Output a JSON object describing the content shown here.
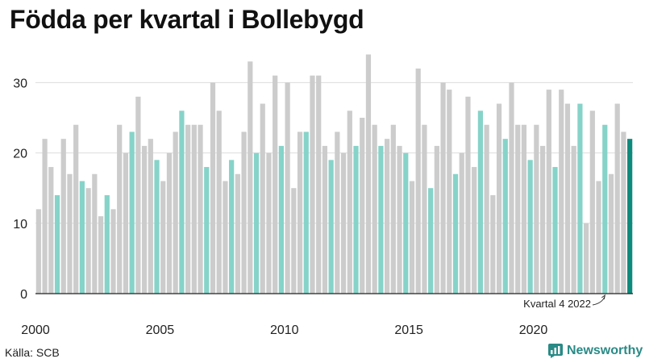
{
  "title": "Födda per kvartal i Bollebygd",
  "source": "Källa: SCB",
  "brand": "Newsworthy",
  "colors": {
    "default": "#cccccc",
    "q4": "#86d3c9",
    "latest": "#0e8a7c",
    "brand": "#2a8a86"
  },
  "chart_data": {
    "type": "bar",
    "title": "Födda per kvartal i Bollebygd",
    "xlabel": "",
    "ylabel": "",
    "ylim": [
      0,
      35
    ],
    "yticks": [
      0,
      10,
      20,
      30
    ],
    "xtick_labels": [
      "2000",
      "2005",
      "2010",
      "2015",
      "2020"
    ],
    "annotation": "Kvartal 4 2022",
    "start_year": 2000,
    "values": [
      12,
      22,
      18,
      14,
      22,
      17,
      24,
      16,
      15,
      17,
      11,
      14,
      12,
      24,
      20,
      23,
      28,
      21,
      22,
      19,
      16,
      20,
      23,
      26,
      24,
      24,
      24,
      18,
      30,
      26,
      16,
      19,
      17,
      23,
      33,
      20,
      27,
      20,
      31,
      21,
      30,
      15,
      23,
      23,
      31,
      31,
      21,
      19,
      23,
      20,
      26,
      21,
      25,
      34,
      24,
      21,
      22,
      24,
      21,
      20,
      16,
      32,
      24,
      15,
      21,
      30,
      29,
      17,
      20,
      28,
      18,
      26,
      24,
      14,
      27,
      22,
      30,
      24,
      24,
      19,
      24,
      21,
      29,
      18,
      29,
      27,
      21,
      27,
      10,
      26,
      16,
      24,
      17,
      27,
      23,
      22
    ]
  }
}
